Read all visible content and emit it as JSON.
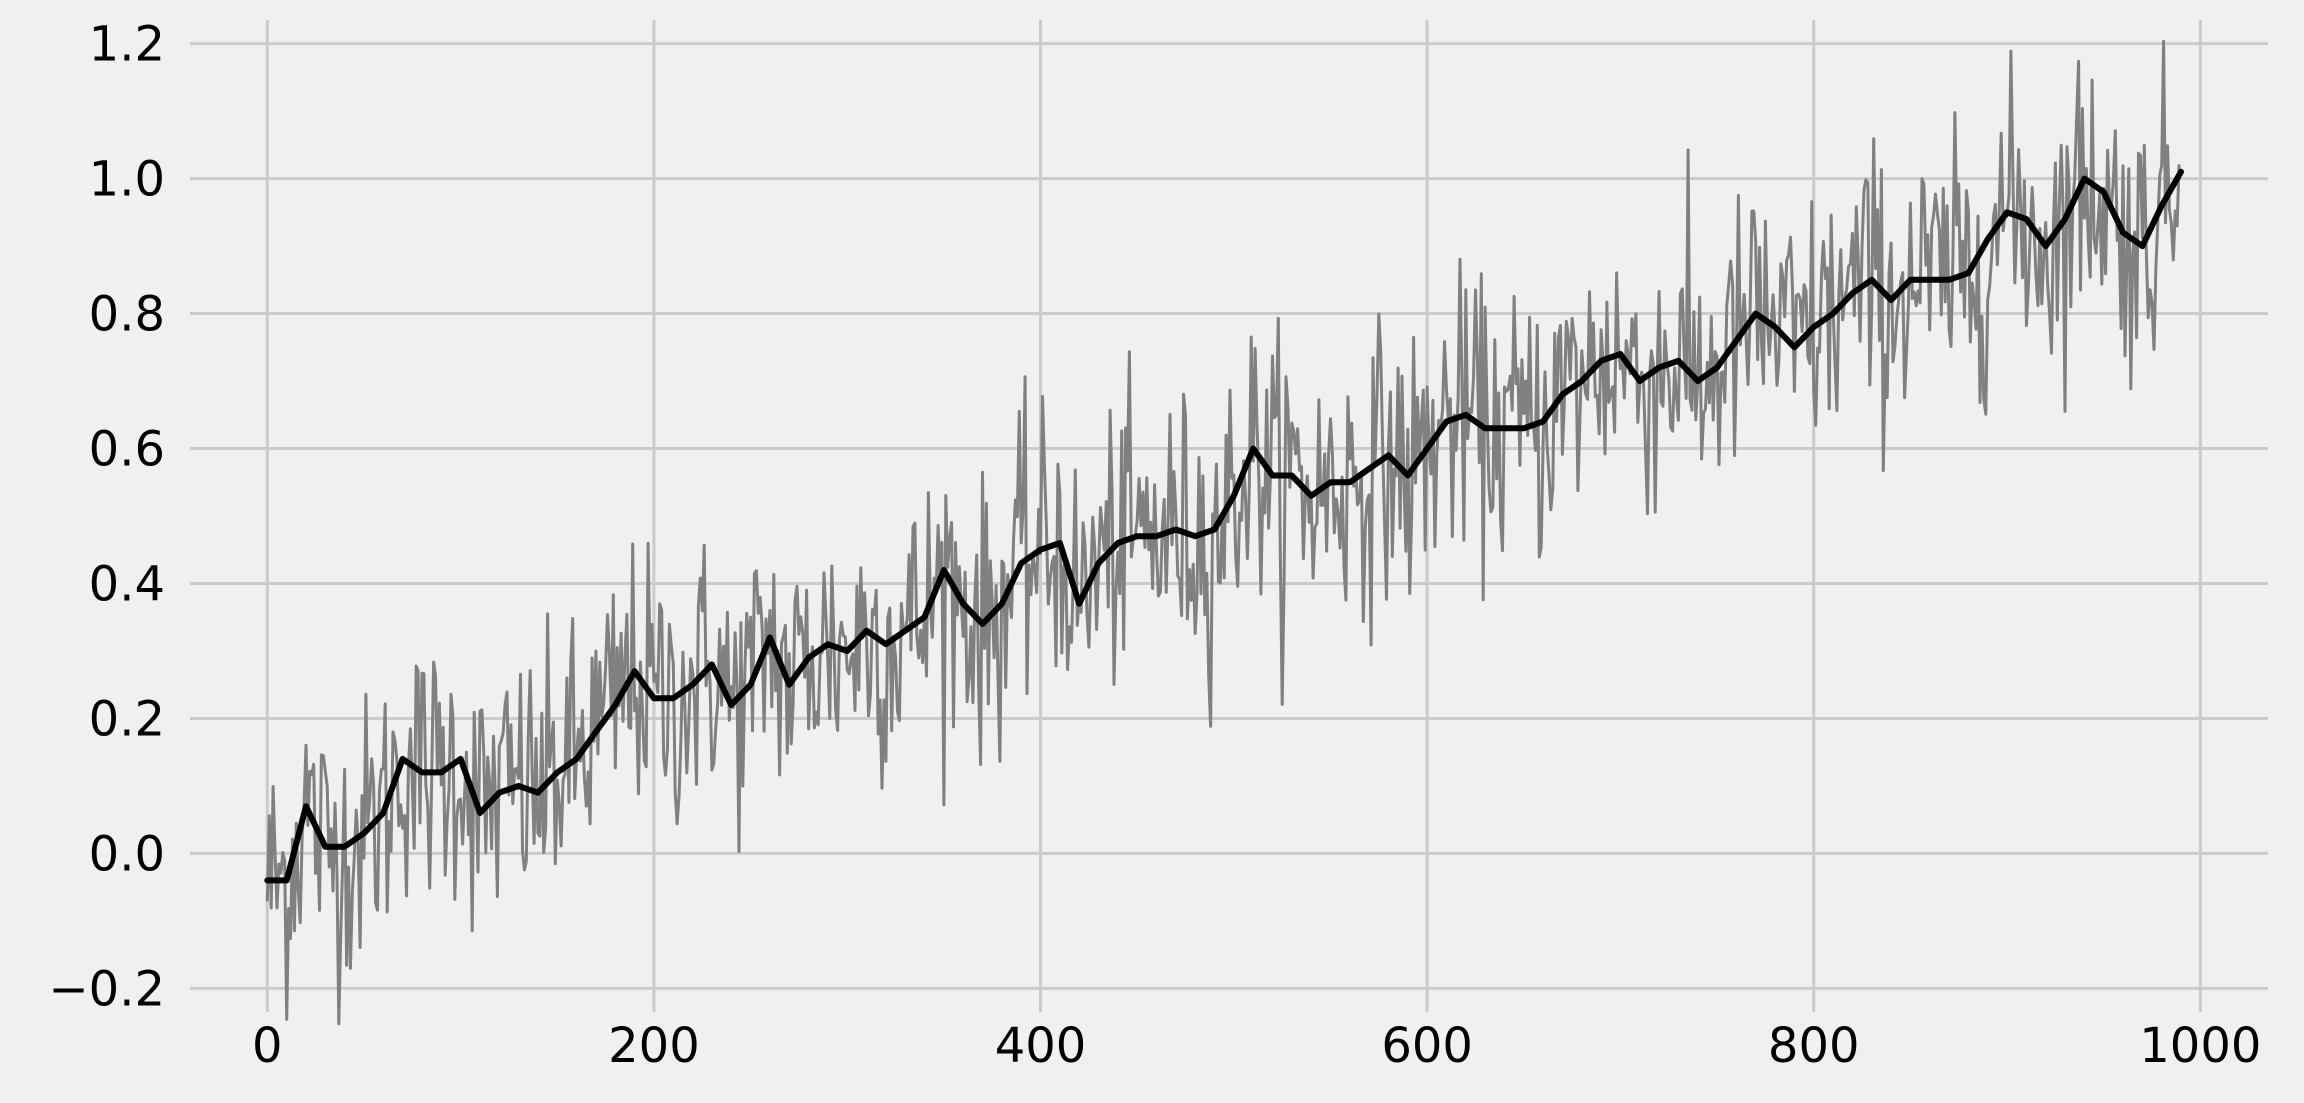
{
  "chart_data": {
    "type": "line",
    "title": "",
    "xlabel": "",
    "ylabel": "",
    "xlim": [
      -40,
      1035
    ],
    "ylim": [
      -0.235,
      1.235
    ],
    "x_ticks": [
      0,
      200,
      400,
      600,
      800,
      1000
    ],
    "x_tick_labels": [
      "0",
      "200",
      "400",
      "600",
      "800",
      "1000"
    ],
    "y_ticks": [
      -0.2,
      0.0,
      0.2,
      0.4,
      0.6,
      0.8,
      1.0,
      1.2
    ],
    "y_tick_labels": [
      "−0.2",
      "0.0",
      "0.2",
      "0.4",
      "0.6",
      "0.8",
      "1.0",
      "1.2"
    ],
    "grid": true,
    "legend": "none",
    "background_color": "#f0f0f0",
    "grid_color": "#cbcbcb",
    "series": [
      {
        "style": "thin",
        "color": "#808080",
        "points": 990,
        "trend": {
          "x": [
            0,
            990
          ],
          "y": [
            0.0,
            1.0
          ]
        },
        "noise_sd": 0.1
      },
      {
        "style": "moving-average",
        "color": "#000000",
        "x": [
          0,
          10,
          20,
          30,
          40,
          50,
          60,
          70,
          80,
          90,
          100,
          110,
          120,
          130,
          140,
          150,
          160,
          170,
          180,
          190,
          200,
          210,
          220,
          230,
          240,
          250,
          260,
          270,
          280,
          290,
          300,
          310,
          320,
          330,
          340,
          350,
          360,
          370,
          380,
          390,
          400,
          410,
          420,
          430,
          440,
          450,
          460,
          470,
          480,
          490,
          500,
          510,
          520,
          530,
          540,
          550,
          560,
          570,
          580,
          590,
          600,
          610,
          620,
          630,
          640,
          650,
          660,
          670,
          680,
          690,
          700,
          710,
          720,
          730,
          740,
          750,
          760,
          770,
          780,
          790,
          800,
          810,
          820,
          830,
          840,
          850,
          860,
          870,
          880,
          890,
          900,
          910,
          920,
          930,
          940,
          950,
          960,
          970,
          980,
          990
        ],
        "y": [
          -0.04,
          -0.04,
          0.07,
          0.01,
          0.01,
          0.03,
          0.06,
          0.14,
          0.12,
          0.12,
          0.14,
          0.06,
          0.09,
          0.1,
          0.09,
          0.12,
          0.14,
          0.18,
          0.22,
          0.27,
          0.23,
          0.23,
          0.25,
          0.28,
          0.22,
          0.25,
          0.32,
          0.25,
          0.29,
          0.31,
          0.3,
          0.33,
          0.31,
          0.33,
          0.35,
          0.42,
          0.37,
          0.34,
          0.37,
          0.43,
          0.45,
          0.46,
          0.37,
          0.43,
          0.46,
          0.47,
          0.47,
          0.48,
          0.47,
          0.48,
          0.53,
          0.6,
          0.56,
          0.56,
          0.53,
          0.55,
          0.55,
          0.57,
          0.59,
          0.56,
          0.6,
          0.64,
          0.65,
          0.63,
          0.63,
          0.63,
          0.64,
          0.68,
          0.7,
          0.73,
          0.74,
          0.7,
          0.72,
          0.73,
          0.7,
          0.72,
          0.76,
          0.8,
          0.78,
          0.75,
          0.78,
          0.8,
          0.83,
          0.85,
          0.82,
          0.85,
          0.85,
          0.85,
          0.86,
          0.91,
          0.95,
          0.94,
          0.9,
          0.94,
          1.0,
          0.98,
          0.92,
          0.9,
          0.96,
          1.01
        ]
      }
    ]
  }
}
